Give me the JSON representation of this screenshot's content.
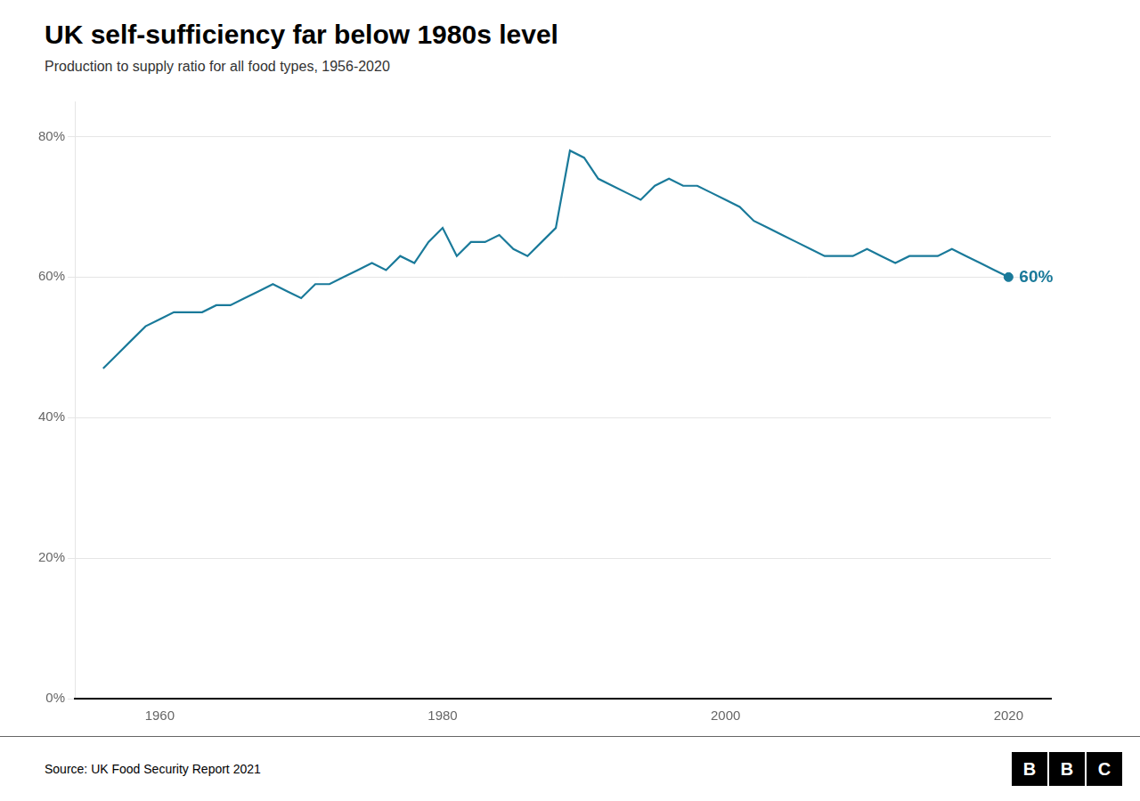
{
  "chart_data": {
    "type": "line",
    "title": "UK self-sufficiency far below 1980s level",
    "subtitle": "Production to supply ratio for all food types, 1956-2020",
    "source": "Source: UK Food Security Report 2021",
    "logo": "BBC",
    "color": "#1a7a9a",
    "x": [
      1956,
      1957,
      1958,
      1959,
      1960,
      1961,
      1962,
      1963,
      1964,
      1965,
      1966,
      1967,
      1968,
      1969,
      1970,
      1971,
      1972,
      1973,
      1974,
      1975,
      1976,
      1977,
      1978,
      1979,
      1980,
      1981,
      1982,
      1983,
      1984,
      1985,
      1986,
      1987,
      1988,
      1989,
      1990,
      1991,
      1992,
      1993,
      1994,
      1995,
      1996,
      1997,
      1998,
      1999,
      2000,
      2001,
      2002,
      2003,
      2004,
      2005,
      2006,
      2007,
      2008,
      2009,
      2010,
      2011,
      2012,
      2013,
      2014,
      2015,
      2016,
      2017,
      2018,
      2019,
      2020
    ],
    "values": [
      47,
      49,
      51,
      53,
      54,
      55,
      55,
      55,
      56,
      56,
      57,
      58,
      59,
      58,
      57,
      59,
      59,
      60,
      61,
      62,
      61,
      63,
      62,
      65,
      67,
      63,
      65,
      65,
      66,
      64,
      63,
      65,
      67,
      78,
      77,
      74,
      73,
      72,
      71,
      73,
      74,
      73,
      73,
      72,
      71,
      70,
      68,
      67,
      66,
      65,
      64,
      63,
      63,
      63,
      64,
      63,
      62,
      63,
      63,
      63,
      64,
      63,
      62,
      61,
      60
    ],
    "annotations": [
      {
        "x": 2020,
        "y": 60,
        "text": "60%"
      }
    ],
    "xlim": [
      1954,
      2023
    ],
    "xticks": [
      1960,
      1980,
      2000,
      2020
    ],
    "ylim": [
      0,
      85
    ],
    "yticks": [
      {
        "value": 0,
        "label": "0%"
      },
      {
        "value": 20,
        "label": "20%"
      },
      {
        "value": 40,
        "label": "40%"
      },
      {
        "value": 60,
        "label": "60%"
      },
      {
        "value": 80,
        "label": "80%"
      }
    ],
    "grid": "y"
  }
}
